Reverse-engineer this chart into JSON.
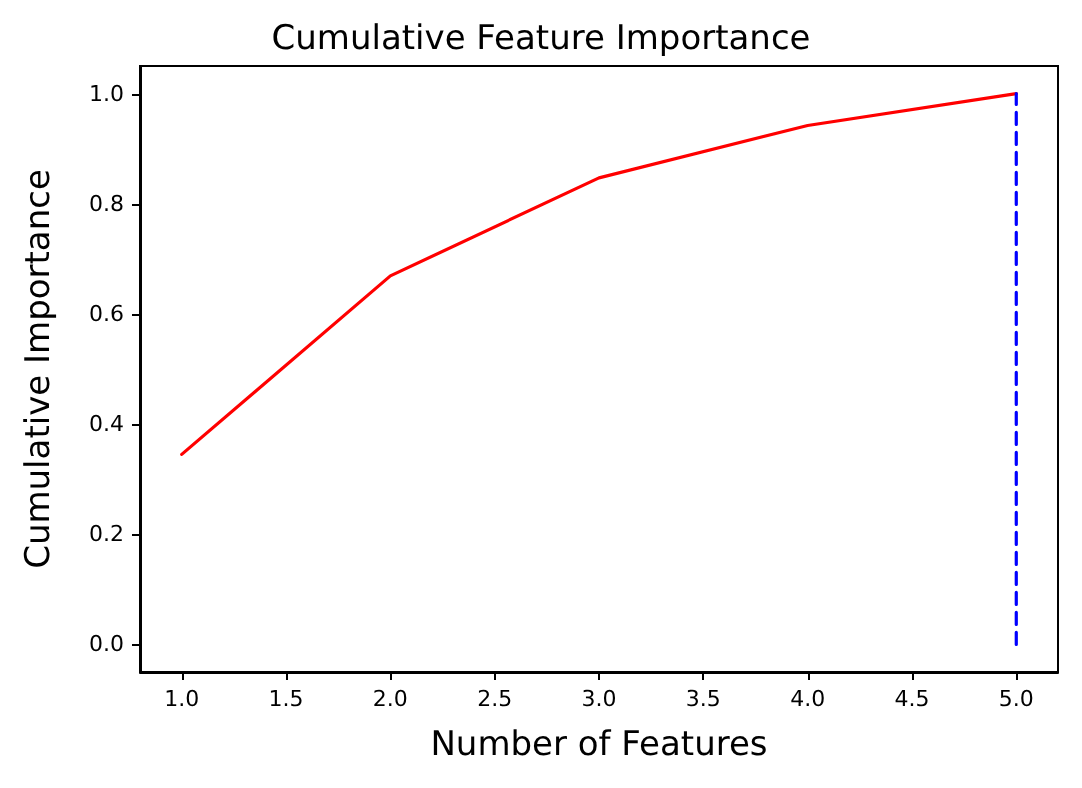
{
  "chart_data": {
    "type": "line",
    "title": "Cumulative Feature Importance",
    "xlabel": "Number of Features",
    "ylabel": "Cumulative Importance",
    "x": [
      1,
      2,
      3,
      4,
      5
    ],
    "series": [
      {
        "color": "#ff0000",
        "values": [
          0.345,
          0.669,
          0.847,
          0.942,
          1.0
        ]
      },
      {
        "color": "#0000ff",
        "x": [
          5,
          5
        ],
        "values": [
          0,
          1
        ],
        "line_style": "dashed"
      }
    ],
    "xlim": [
      0.8,
      5.2
    ],
    "xticks": [
      {
        "value": 1,
        "label": "1.0"
      },
      {
        "value": 1.5,
        "label": "1.5"
      },
      {
        "value": 2,
        "label": "2.0"
      },
      {
        "value": 2.5,
        "label": "2.5"
      },
      {
        "value": 3,
        "label": "3.0"
      },
      {
        "value": 3.5,
        "label": "3.5"
      },
      {
        "value": 4,
        "label": "4.0"
      },
      {
        "value": 4.5,
        "label": "4.5"
      },
      {
        "value": 5,
        "label": "5.0"
      }
    ],
    "ylim": [
      -0.05,
      1.05
    ],
    "yticks": [
      {
        "value": 0,
        "label": "0.0"
      },
      {
        "value": 0.2,
        "label": "0.2"
      },
      {
        "value": 0.4,
        "label": "0.4"
      },
      {
        "value": 0.6,
        "label": "0.6"
      },
      {
        "value": 0.8,
        "label": "0.8"
      },
      {
        "value": 1,
        "label": "1.0"
      }
    ],
    "grid": false,
    "marker": "none",
    "line_style": "solid"
  }
}
